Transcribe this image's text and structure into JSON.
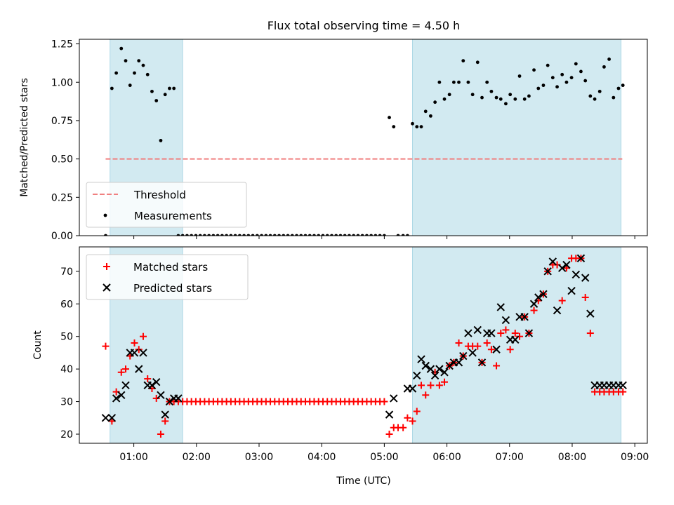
{
  "title": "Flux total observing time = 4.50 h",
  "xlabel": "Time (UTC)",
  "xticks": [
    "01:00",
    "02:00",
    "03:00",
    "04:00",
    "05:00",
    "06:00",
    "07:00",
    "08:00",
    "09:00"
  ],
  "colors": {
    "shade": "#add8e6",
    "threshold": "#f08080",
    "measurements": "#000000",
    "matched": "#ff0000",
    "predicted": "#000000"
  },
  "chart_data": [
    {
      "type": "scatter",
      "ylabel": "Matched/Predicted stars",
      "x_unit": "hours UTC",
      "xlim": [
        0.13,
        9.2
      ],
      "ylim": [
        0,
        1.28
      ],
      "yticks": [
        0.0,
        0.25,
        0.5,
        0.75,
        1.0,
        1.25
      ],
      "ytick_labels": [
        "0.00",
        "0.25",
        "0.50",
        "0.75",
        "1.00",
        "1.25"
      ],
      "shaded_intervals": [
        [
          0.62,
          1.78
        ],
        [
          5.45,
          8.78
        ]
      ],
      "threshold": {
        "name": "Threshold",
        "y": 0.5,
        "x_range": [
          0.55,
          8.8
        ],
        "style": "dashed"
      },
      "legend": {
        "location": "lower-left",
        "entries": [
          "Threshold",
          "Measurements"
        ]
      },
      "series": [
        {
          "name": "Measurements",
          "x": [
            0.55,
            0.65,
            0.72,
            0.8,
            0.87,
            0.94,
            1.01,
            1.08,
            1.15,
            1.22,
            1.29,
            1.36,
            1.43,
            1.5,
            1.57,
            1.64,
            1.71,
            1.78,
            1.85,
            1.92,
            1.99,
            2.06,
            2.13,
            2.2,
            2.27,
            2.34,
            2.41,
            2.48,
            2.55,
            2.62,
            2.69,
            2.76,
            2.83,
            2.9,
            2.97,
            3.04,
            3.11,
            3.18,
            3.25,
            3.32,
            3.39,
            3.46,
            3.53,
            3.6,
            3.67,
            3.74,
            3.81,
            3.88,
            3.95,
            4.02,
            4.09,
            4.16,
            4.23,
            4.3,
            4.37,
            4.44,
            4.51,
            4.58,
            4.65,
            4.72,
            4.79,
            4.86,
            4.93,
            5.0,
            5.08,
            5.15,
            5.22,
            5.3,
            5.37,
            5.45,
            5.52,
            5.59,
            5.66,
            5.74,
            5.81,
            5.88,
            5.96,
            6.04,
            6.11,
            6.19,
            6.26,
            6.34,
            6.41,
            6.49,
            6.56,
            6.64,
            6.71,
            6.79,
            6.86,
            6.94,
            7.01,
            7.09,
            7.16,
            7.24,
            7.31,
            7.39,
            7.46,
            7.54,
            7.61,
            7.69,
            7.76,
            7.84,
            7.91,
            7.99,
            8.06,
            8.14,
            8.21,
            8.29,
            8.36,
            8.44,
            8.51,
            8.59,
            8.66,
            8.74,
            8.81
          ],
          "y": [
            0.0,
            0.96,
            1.06,
            1.22,
            1.14,
            0.98,
            1.06,
            1.14,
            1.11,
            1.05,
            0.94,
            0.88,
            0.62,
            0.92,
            0.96,
            0.96,
            0.0,
            0.0,
            0.0,
            0.0,
            0.0,
            0.0,
            0.0,
            0.0,
            0.0,
            0.0,
            0.0,
            0.0,
            0.0,
            0.0,
            0.0,
            0.0,
            0.0,
            0.0,
            0.0,
            0.0,
            0.0,
            0.0,
            0.0,
            0.0,
            0.0,
            0.0,
            0.0,
            0.0,
            0.0,
            0.0,
            0.0,
            0.0,
            0.0,
            0.0,
            0.0,
            0.0,
            0.0,
            0.0,
            0.0,
            0.0,
            0.0,
            0.0,
            0.0,
            0.0,
            0.0,
            0.0,
            0.0,
            0.0,
            0.77,
            0.71,
            0.0,
            0.0,
            0.0,
            0.73,
            0.71,
            0.71,
            0.81,
            0.78,
            0.87,
            1.0,
            0.89,
            0.92,
            1.0,
            1.0,
            1.14,
            1.0,
            0.92,
            1.13,
            0.9,
            1.0,
            0.94,
            0.9,
            0.89,
            0.86,
            0.92,
            0.89,
            1.04,
            0.89,
            0.91,
            1.08,
            0.96,
            0.98,
            1.11,
            1.03,
            0.97,
            1.05,
            1.0,
            1.03,
            1.12,
            1.07,
            1.01,
            0.91,
            0.89,
            0.94,
            1.1,
            1.15,
            0.9,
            0.96,
            0.98
          ]
        }
      ]
    },
    {
      "type": "scatter",
      "ylabel": "Count",
      "x_unit": "hours UTC",
      "xlim": [
        0.13,
        9.2
      ],
      "ylim": [
        17.2,
        77.5
      ],
      "yticks": [
        20,
        30,
        40,
        50,
        60,
        70
      ],
      "ytick_labels": [
        "20",
        "30",
        "40",
        "50",
        "60",
        "70"
      ],
      "shaded_intervals": [
        [
          0.62,
          1.78
        ],
        [
          5.45,
          8.78
        ]
      ],
      "legend": {
        "location": "upper-left",
        "entries": [
          "Matched stars",
          "Predicted stars"
        ]
      },
      "series": [
        {
          "name": "Matched stars",
          "marker": "+",
          "x": [
            0.55,
            0.65,
            0.72,
            0.8,
            0.87,
            0.94,
            1.01,
            1.08,
            1.15,
            1.22,
            1.29,
            1.36,
            1.43,
            1.5,
            1.57,
            1.64,
            1.71,
            1.78,
            1.85,
            1.92,
            1.99,
            2.06,
            2.13,
            2.2,
            2.27,
            2.34,
            2.41,
            2.48,
            2.55,
            2.62,
            2.69,
            2.76,
            2.83,
            2.9,
            2.97,
            3.04,
            3.11,
            3.18,
            3.25,
            3.32,
            3.39,
            3.46,
            3.53,
            3.6,
            3.67,
            3.74,
            3.81,
            3.88,
            3.95,
            4.02,
            4.09,
            4.16,
            4.23,
            4.3,
            4.37,
            4.44,
            4.51,
            4.58,
            4.65,
            4.72,
            4.79,
            4.86,
            4.93,
            5.0,
            5.08,
            5.15,
            5.22,
            5.3,
            5.37,
            5.45,
            5.52,
            5.59,
            5.66,
            5.74,
            5.81,
            5.88,
            5.96,
            6.04,
            6.11,
            6.19,
            6.26,
            6.34,
            6.41,
            6.49,
            6.56,
            6.64,
            6.71,
            6.79,
            6.86,
            6.94,
            7.01,
            7.09,
            7.16,
            7.24,
            7.31,
            7.39,
            7.46,
            7.54,
            7.61,
            7.69,
            7.76,
            7.84,
            7.91,
            7.99,
            8.06,
            8.14,
            8.21,
            8.29,
            8.36,
            8.44,
            8.51,
            8.59,
            8.66,
            8.74,
            8.81
          ],
          "y": [
            47,
            24,
            33,
            39,
            40,
            44,
            48,
            46,
            50,
            37,
            34,
            31,
            20,
            24,
            30,
            30,
            30,
            30,
            30,
            30,
            30,
            30,
            30,
            30,
            30,
            30,
            30,
            30,
            30,
            30,
            30,
            30,
            30,
            30,
            30,
            30,
            30,
            30,
            30,
            30,
            30,
            30,
            30,
            30,
            30,
            30,
            30,
            30,
            30,
            30,
            30,
            30,
            30,
            30,
            30,
            30,
            30,
            30,
            30,
            30,
            30,
            30,
            30,
            30,
            20,
            22,
            22,
            22,
            25,
            24,
            27,
            35,
            32,
            35,
            39,
            35,
            36,
            41,
            42,
            48,
            44,
            47,
            47,
            47,
            42,
            48,
            46,
            41,
            51,
            52,
            46,
            51,
            50,
            56,
            51,
            58,
            61,
            63,
            70,
            72,
            72,
            61,
            71,
            74,
            74,
            74,
            62,
            51,
            33,
            33,
            33,
            33,
            33,
            33,
            33
          ]
        },
        {
          "name": "Predicted stars",
          "marker": "x",
          "x": [
            0.55,
            0.65,
            0.72,
            0.8,
            0.87,
            0.94,
            1.01,
            1.08,
            1.15,
            1.22,
            1.29,
            1.36,
            1.43,
            1.5,
            1.57,
            1.64,
            1.71,
            5.08,
            5.15,
            5.37,
            5.45,
            5.52,
            5.59,
            5.66,
            5.74,
            5.81,
            5.88,
            5.96,
            6.04,
            6.11,
            6.19,
            6.26,
            6.34,
            6.41,
            6.49,
            6.56,
            6.64,
            6.71,
            6.79,
            6.86,
            6.94,
            7.01,
            7.09,
            7.16,
            7.24,
            7.31,
            7.39,
            7.46,
            7.54,
            7.61,
            7.69,
            7.76,
            7.84,
            7.91,
            7.99,
            8.06,
            8.14,
            8.21,
            8.29,
            8.36,
            8.44,
            8.51,
            8.59,
            8.66,
            8.74,
            8.81
          ],
          "y": [
            25,
            25,
            31,
            32,
            35,
            45,
            45,
            40,
            45,
            35,
            35,
            36,
            32,
            26,
            30,
            31,
            31,
            26,
            31,
            34,
            34,
            38,
            43,
            41,
            40,
            38,
            40,
            39,
            41,
            42,
            42,
            44,
            51,
            45,
            52,
            42,
            51,
            51,
            46,
            59,
            55,
            49,
            49,
            56,
            56,
            51,
            60,
            62,
            63,
            70,
            73,
            58,
            71,
            72,
            64,
            69,
            74,
            68,
            57,
            35,
            35,
            35,
            35,
            35,
            35,
            35
          ]
        }
      ]
    }
  ]
}
